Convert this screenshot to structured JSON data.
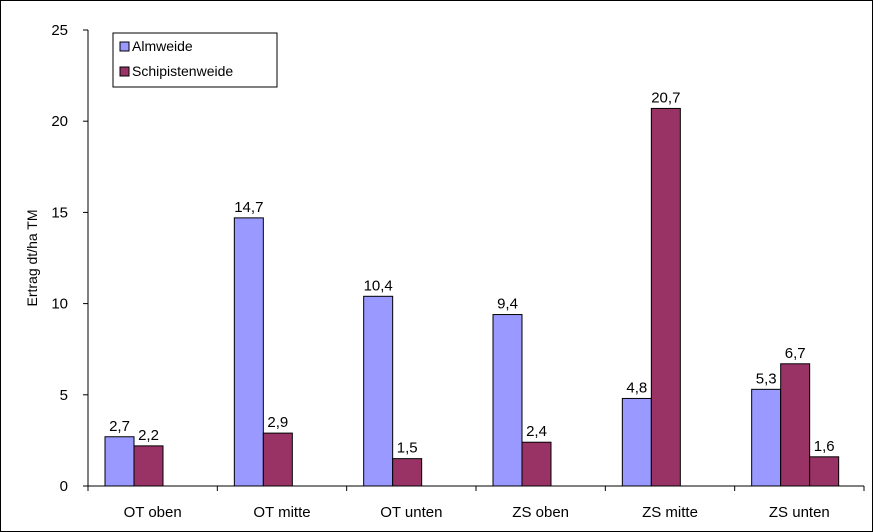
{
  "chart_data": {
    "type": "bar",
    "title": "",
    "xlabel": "",
    "ylabel": "Ertrag dt/ha TM",
    "ylim": [
      0,
      25
    ],
    "yticks": [
      "0",
      "5",
      "10",
      "15",
      "20",
      "25"
    ],
    "grid": false,
    "legend_position": "top-left",
    "categories": [
      "OT oben",
      "OT mitte",
      "OT unten",
      "ZS oben",
      "ZS mitte",
      "ZS unten"
    ],
    "series": [
      {
        "name": "Almweide",
        "color": "#9999FF",
        "values": [
          2.7,
          14.7,
          10.4,
          9.4,
          4.8,
          5.3
        ],
        "labels": [
          "2,7",
          "14,7",
          "10,4",
          "9,4",
          "4,8",
          "5,3"
        ]
      },
      {
        "name": "Schipistenweide",
        "color": "#993366",
        "values": [
          2.2,
          2.9,
          1.5,
          2.4,
          20.7,
          6.7
        ],
        "labels": [
          "2,2",
          "2,9",
          "1,5",
          "2,4",
          "20,7",
          "6,7"
        ]
      }
    ],
    "extra_bars": [
      {
        "category_index": 5,
        "color": "#993366",
        "value": 1.6,
        "label": "1,6"
      }
    ]
  }
}
